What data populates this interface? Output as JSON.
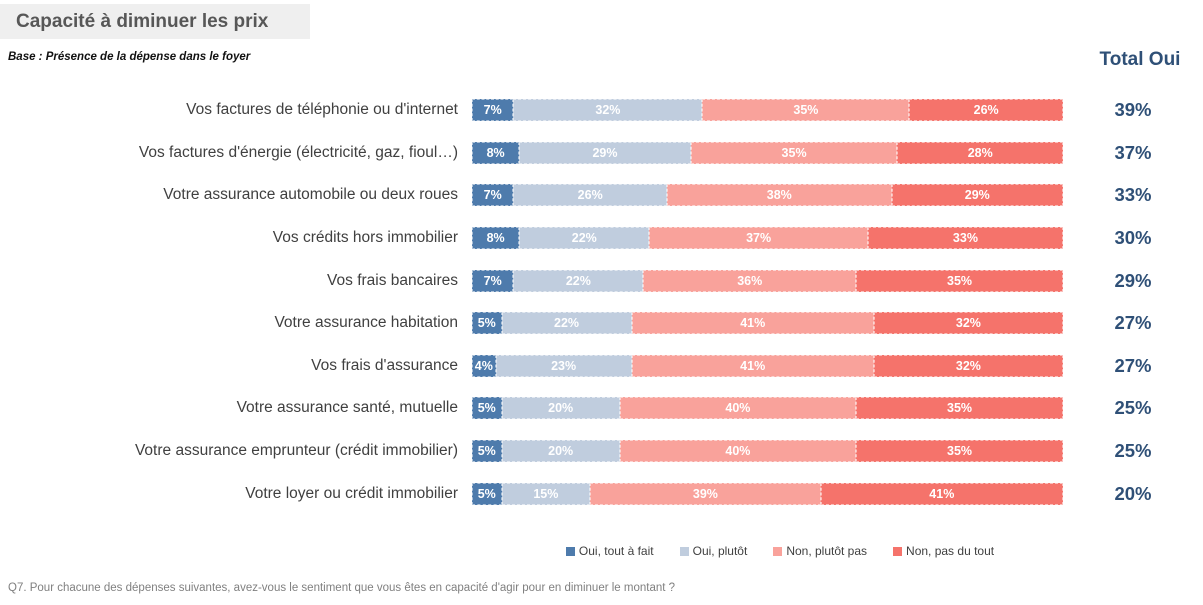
{
  "title": "Capacité à diminuer les prix",
  "subtitle": "Base : Présence de la dépense dans le foyer",
  "total_header": "Total Oui",
  "footer": "Q7. Pour chacune des dépenses suivantes, avez-vous le sentiment que vous êtes en capacité d'agir pour en diminuer le montant ?",
  "colors": {
    "title_bg": "#EFEFEF",
    "title_text": "#575757",
    "total_text": "#2F5077",
    "oui_tout_a_fait": "#4E7BAC",
    "oui_plutot": "#C0CDDE",
    "non_plutot_pas": "#F9A29B",
    "non_pas_du_tout": "#F5736B"
  },
  "chart_data": {
    "type": "bar",
    "subtype": "horizontal-stacked-100",
    "title": "Capacité à diminuer les prix",
    "xlim": [
      0,
      100
    ],
    "value_suffix": "%",
    "legend_position": "bottom",
    "grid": false,
    "categories": [
      "Vos factures de téléphonie ou d'internet",
      "Vos factures d'énergie (électricité, gaz, fioul…)",
      "Votre assurance automobile ou deux roues",
      "Vos crédits hors immobilier",
      "Vos frais bancaires",
      "Votre assurance habitation",
      "Vos frais d'assurance",
      "Votre assurance santé, mutuelle",
      "Votre assurance emprunteur (crédit immobilier)",
      "Votre loyer ou crédit immobilier"
    ],
    "series": [
      {
        "name": "Oui, tout à fait",
        "color": "#4E7BAC",
        "values": [
          7,
          8,
          7,
          8,
          7,
          5,
          4,
          5,
          5,
          5
        ]
      },
      {
        "name": "Oui, plutôt",
        "color": "#C0CDDE",
        "values": [
          32,
          29,
          26,
          22,
          22,
          22,
          23,
          20,
          20,
          15
        ]
      },
      {
        "name": "Non, plutôt pas",
        "color": "#F9A29B",
        "values": [
          35,
          35,
          38,
          37,
          36,
          41,
          41,
          40,
          40,
          39
        ]
      },
      {
        "name": "Non, pas du tout",
        "color": "#F5736B",
        "values": [
          26,
          28,
          29,
          33,
          35,
          32,
          32,
          35,
          35,
          41
        ]
      }
    ],
    "totals_oui": [
      39,
      37,
      33,
      30,
      29,
      27,
      27,
      25,
      25,
      20
    ]
  }
}
